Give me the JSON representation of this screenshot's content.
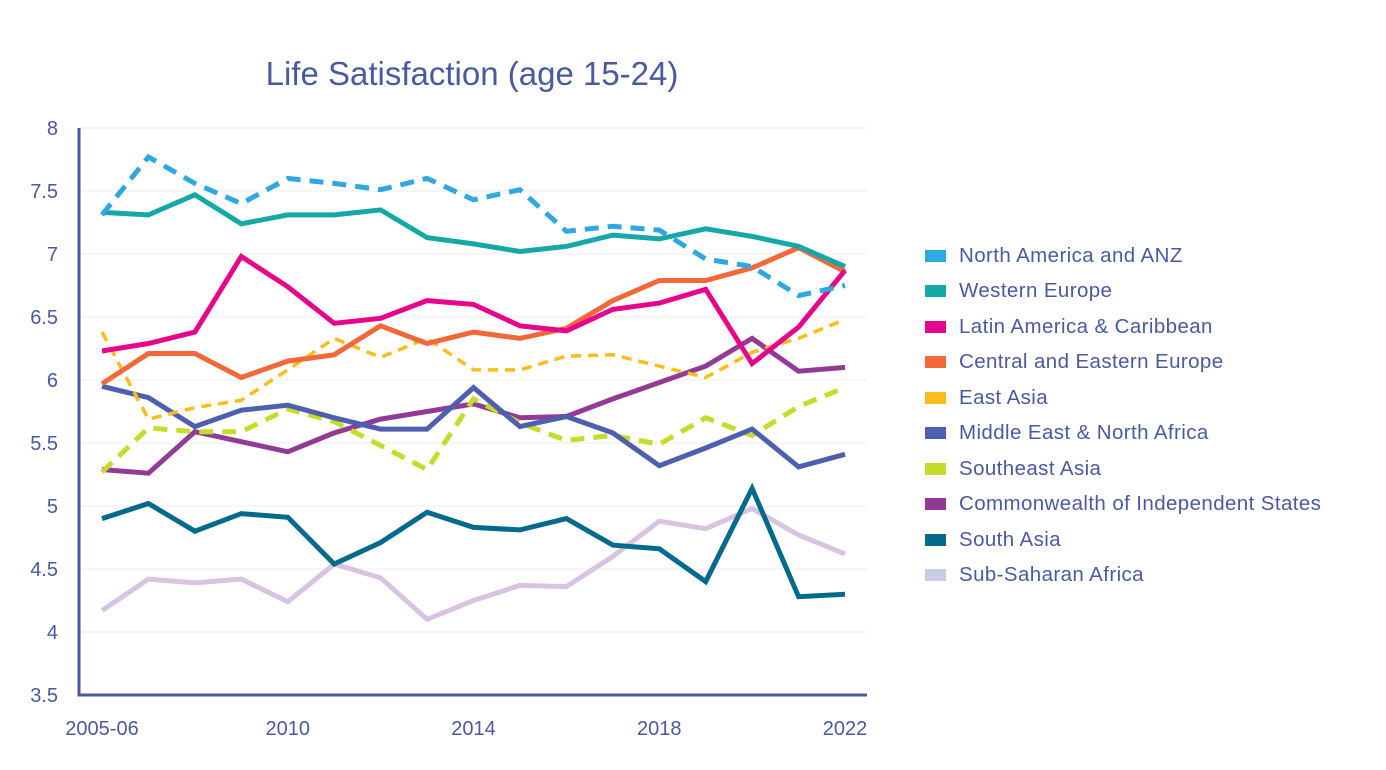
{
  "chart_data": {
    "type": "line",
    "title": "Life Satisfaction (age 15-24)",
    "xlabel": "",
    "ylabel": "",
    "ylim": [
      3.5,
      8
    ],
    "yticks": [
      "8",
      "7.5",
      "7",
      "6.5",
      "6",
      "5.5",
      "5",
      "4.5",
      "4",
      "3.5"
    ],
    "ytick_values": [
      8,
      7.5,
      7,
      6.5,
      6,
      5.5,
      5,
      4.5,
      4,
      3.5
    ],
    "x": [
      "2005-06",
      "2007",
      "2008",
      "2009",
      "2010",
      "2011",
      "2012",
      "2013",
      "2014",
      "2015",
      "2016",
      "2017",
      "2018",
      "2019",
      "2020",
      "2021",
      "2022"
    ],
    "xtick_labels": [
      {
        "index": 0,
        "label": "2005-06"
      },
      {
        "index": 4,
        "label": "2010"
      },
      {
        "index": 8,
        "label": "2014"
      },
      {
        "index": 12,
        "label": "2018"
      },
      {
        "index": 16,
        "label": "2022"
      }
    ],
    "grid": "horizontal",
    "legend_position": "right",
    "series": [
      {
        "name": "North America and ANZ",
        "color": "#2ea8e0",
        "style": "dashed",
        "values": [
          7.31,
          7.77,
          7.56,
          7.4,
          7.6,
          7.56,
          7.51,
          7.6,
          7.43,
          7.51,
          7.18,
          7.22,
          7.19,
          6.96,
          6.9,
          6.67,
          6.75
        ]
      },
      {
        "name": "Western Europe",
        "color": "#16a8a6",
        "style": "solid",
        "values": [
          7.33,
          7.31,
          7.47,
          7.24,
          7.31,
          7.31,
          7.35,
          7.13,
          7.08,
          7.02,
          7.06,
          7.15,
          7.12,
          7.2,
          7.14,
          7.06,
          6.9
        ]
      },
      {
        "name": "Latin America & Caribbean",
        "color": "#e5068c",
        "style": "solid",
        "values": [
          6.23,
          6.29,
          6.38,
          6.98,
          6.74,
          6.45,
          6.49,
          6.63,
          6.6,
          6.43,
          6.39,
          6.56,
          6.61,
          6.72,
          6.13,
          6.42,
          6.87
        ]
      },
      {
        "name": "Central and Eastern Europe",
        "color": "#f2683a",
        "style": "solid",
        "values": [
          5.97,
          6.21,
          6.21,
          6.02,
          6.15,
          6.2,
          6.43,
          6.29,
          6.38,
          6.33,
          6.41,
          6.63,
          6.79,
          6.79,
          6.89,
          7.05,
          6.86
        ]
      },
      {
        "name": "East Asia",
        "color": "#fbbc1c",
        "style": "thin-dashed",
        "values": [
          6.38,
          5.69,
          5.78,
          5.84,
          6.08,
          6.33,
          6.18,
          6.33,
          6.08,
          6.08,
          6.19,
          6.2,
          6.11,
          6.02,
          6.22,
          6.33,
          6.48
        ]
      },
      {
        "name": "Middle East & North Africa",
        "color": "#4d5fae",
        "style": "solid",
        "values": [
          5.95,
          5.86,
          5.63,
          5.76,
          5.8,
          5.7,
          5.61,
          5.61,
          5.94,
          5.63,
          5.71,
          5.58,
          5.32,
          5.46,
          5.61,
          5.31,
          5.41
        ]
      },
      {
        "name": "Southeast Asia",
        "color": "#c5dc2a",
        "style": "dashed",
        "values": [
          5.27,
          5.62,
          5.59,
          5.59,
          5.77,
          5.67,
          5.48,
          5.29,
          5.85,
          5.66,
          5.52,
          5.56,
          5.49,
          5.7,
          5.56,
          5.79,
          5.94
        ]
      },
      {
        "name": "Commonwealth of Independent States",
        "color": "#923b95",
        "style": "solid",
        "values": [
          5.29,
          5.26,
          5.59,
          5.51,
          5.43,
          5.58,
          5.69,
          5.75,
          5.81,
          5.7,
          5.71,
          5.85,
          5.98,
          6.11,
          6.33,
          6.07,
          6.1
        ]
      },
      {
        "name": "South Asia",
        "color": "#046a8c",
        "style": "solid",
        "values": [
          4.9,
          5.02,
          4.8,
          4.94,
          4.91,
          4.54,
          4.71,
          4.95,
          4.83,
          4.81,
          4.9,
          4.69,
          4.66,
          4.4,
          5.14,
          4.28,
          4.3
        ]
      },
      {
        "name": "Sub-Saharan Africa",
        "color": "#d8c4e0",
        "legend_color": "#cacbe6",
        "style": "solid",
        "values": [
          4.17,
          4.42,
          4.39,
          4.42,
          4.24,
          4.54,
          4.43,
          4.1,
          4.25,
          4.37,
          4.36,
          4.6,
          4.88,
          4.82,
          4.98,
          4.77,
          4.62
        ]
      }
    ]
  }
}
